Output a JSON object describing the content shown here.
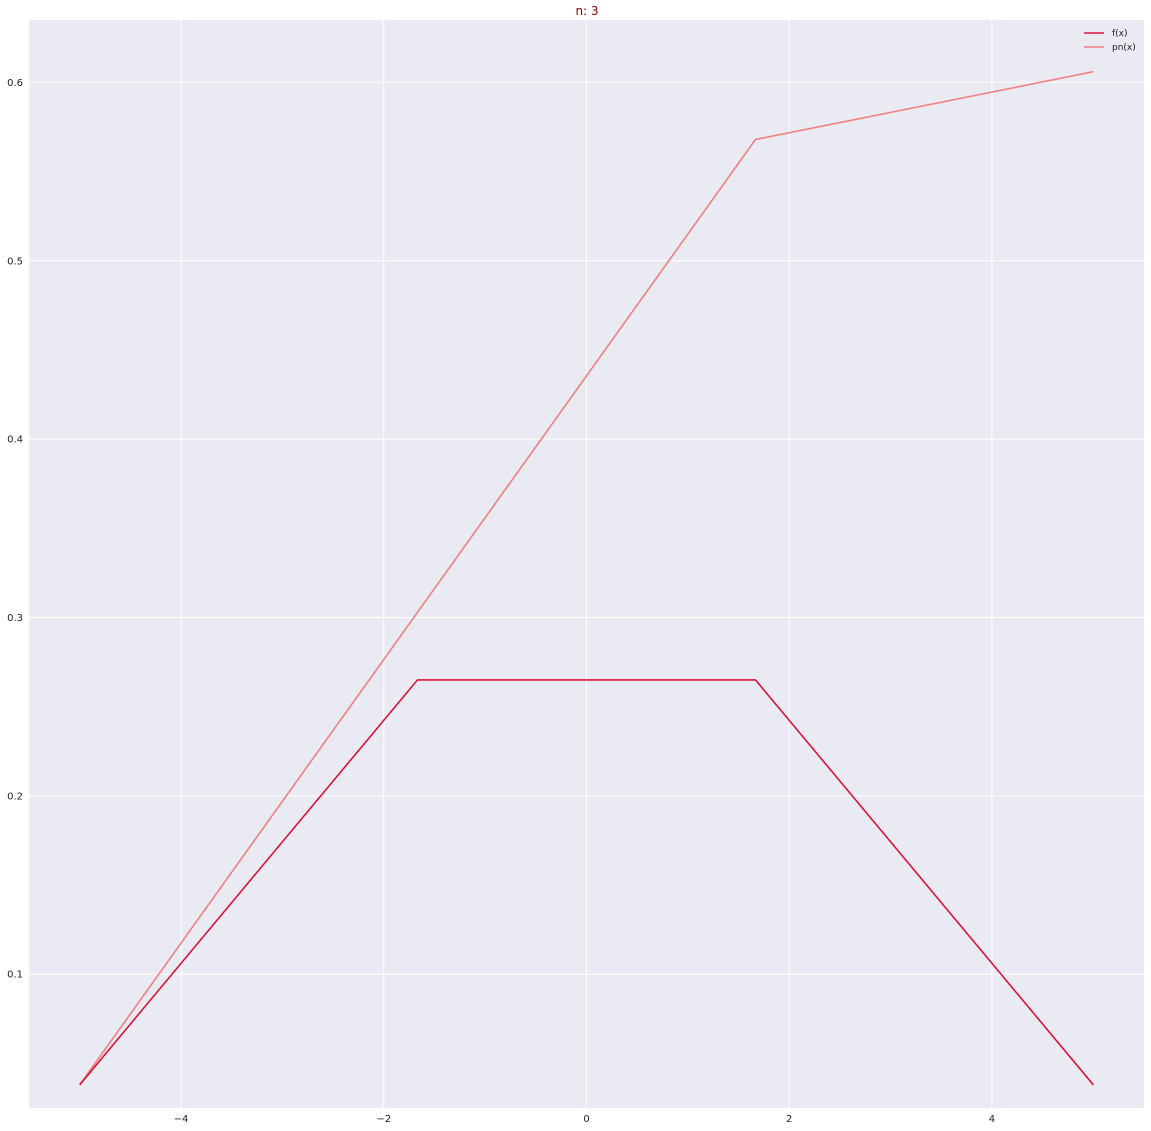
{
  "chart_data": {
    "type": "line",
    "title": "n: 3",
    "title_color": "#8b0000",
    "xlabel": "",
    "ylabel": "",
    "xlim": [
      -5.5,
      5.5
    ],
    "ylim": [
      0.025,
      0.635
    ],
    "xticks": [
      -4,
      -2,
      0,
      2,
      4
    ],
    "xtick_labels": [
      "−4",
      "−2",
      "0",
      "2",
      "4"
    ],
    "yticks": [
      0.1,
      0.2,
      0.3,
      0.4,
      0.5,
      0.6
    ],
    "ytick_labels": [
      "0.1",
      "0.2",
      "0.3",
      "0.4",
      "0.5",
      "0.6"
    ],
    "grid": true,
    "background": "#eaeaf2",
    "grid_color": "#ffffff",
    "legend_position": "top-right",
    "series": [
      {
        "name": "f(x)",
        "color": "#dc143c",
        "x": [
          -5,
          -1.667,
          1.667,
          5
        ],
        "y": [
          0.038,
          0.265,
          0.265,
          0.038
        ]
      },
      {
        "name": "pn(x)",
        "color": "#f08080",
        "x": [
          -5,
          1.667,
          5
        ],
        "y": [
          0.038,
          0.568,
          0.606
        ]
      }
    ]
  }
}
